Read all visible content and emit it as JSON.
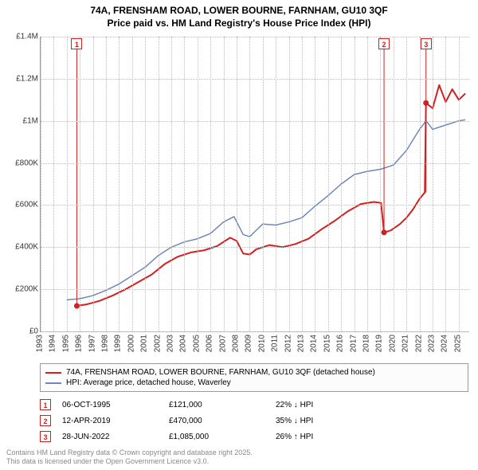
{
  "title_line1": "74A, FRENSHAM ROAD, LOWER BOURNE, FARNHAM, GU10 3QF",
  "title_line2": "Price paid vs. HM Land Registry's House Price Index (HPI)",
  "chart": {
    "type": "line",
    "background_color": "#fdfdfe",
    "grid_color": "#bbbbbb",
    "axis_color": "#999999",
    "xlim": [
      1993,
      2025.8
    ],
    "ylim": [
      0,
      1400000
    ],
    "ytick_step": 200000,
    "yticks": [
      {
        "v": 0,
        "label": "£0"
      },
      {
        "v": 200000,
        "label": "£200K"
      },
      {
        "v": 400000,
        "label": "£400K"
      },
      {
        "v": 600000,
        "label": "£600K"
      },
      {
        "v": 800000,
        "label": "£800K"
      },
      {
        "v": 1000000,
        "label": "£1M"
      },
      {
        "v": 1200000,
        "label": "£1.2M"
      },
      {
        "v": 1400000,
        "label": "£1.4M"
      }
    ],
    "xticks": [
      1993,
      1994,
      1995,
      1996,
      1997,
      1998,
      1999,
      2000,
      2001,
      2002,
      2003,
      2004,
      2005,
      2006,
      2007,
      2008,
      2009,
      2010,
      2011,
      2012,
      2013,
      2014,
      2015,
      2016,
      2017,
      2018,
      2019,
      2020,
      2021,
      2022,
      2023,
      2024,
      2025
    ],
    "series": [
      {
        "name": "hpi",
        "color": "#6f87b8",
        "width": 1.5,
        "points": [
          [
            1995.0,
            150000
          ],
          [
            1996.0,
            155000
          ],
          [
            1997.0,
            170000
          ],
          [
            1998.0,
            195000
          ],
          [
            1999.0,
            225000
          ],
          [
            2000.0,
            265000
          ],
          [
            2001.0,
            305000
          ],
          [
            2002.0,
            360000
          ],
          [
            2003.0,
            400000
          ],
          [
            2004.0,
            425000
          ],
          [
            2005.0,
            440000
          ],
          [
            2006.0,
            465000
          ],
          [
            2007.0,
            520000
          ],
          [
            2007.8,
            545000
          ],
          [
            2008.5,
            460000
          ],
          [
            2009.0,
            450000
          ],
          [
            2009.5,
            480000
          ],
          [
            2010.0,
            510000
          ],
          [
            2011.0,
            505000
          ],
          [
            2012.0,
            520000
          ],
          [
            2013.0,
            540000
          ],
          [
            2014.0,
            595000
          ],
          [
            2015.0,
            645000
          ],
          [
            2016.0,
            700000
          ],
          [
            2017.0,
            745000
          ],
          [
            2018.0,
            760000
          ],
          [
            2019.0,
            770000
          ],
          [
            2020.0,
            790000
          ],
          [
            2021.0,
            860000
          ],
          [
            2022.0,
            960000
          ],
          [
            2022.5,
            1000000
          ],
          [
            2023.0,
            960000
          ],
          [
            2024.0,
            980000
          ],
          [
            2025.0,
            1000000
          ],
          [
            2025.5,
            1005000
          ]
        ]
      },
      {
        "name": "property",
        "color": "#d02020",
        "width": 2,
        "points": [
          [
            1995.77,
            121000
          ],
          [
            1996.5,
            128000
          ],
          [
            1997.5,
            145000
          ],
          [
            1998.5,
            170000
          ],
          [
            1999.5,
            200000
          ],
          [
            2000.5,
            235000
          ],
          [
            2001.5,
            270000
          ],
          [
            2002.5,
            320000
          ],
          [
            2003.5,
            355000
          ],
          [
            2004.5,
            375000
          ],
          [
            2005.5,
            385000
          ],
          [
            2006.5,
            405000
          ],
          [
            2007.5,
            445000
          ],
          [
            2008.0,
            430000
          ],
          [
            2008.5,
            370000
          ],
          [
            2009.0,
            365000
          ],
          [
            2009.5,
            390000
          ],
          [
            2010.5,
            410000
          ],
          [
            2011.5,
            400000
          ],
          [
            2012.5,
            415000
          ],
          [
            2013.5,
            440000
          ],
          [
            2014.5,
            485000
          ],
          [
            2015.5,
            525000
          ],
          [
            2016.5,
            570000
          ],
          [
            2017.5,
            605000
          ],
          [
            2018.5,
            615000
          ],
          [
            2019.05,
            610000
          ],
          [
            2019.28,
            470000
          ],
          [
            2019.8,
            480000
          ],
          [
            2020.5,
            510000
          ],
          [
            2021.0,
            540000
          ],
          [
            2021.5,
            580000
          ],
          [
            2022.0,
            630000
          ],
          [
            2022.4,
            660000
          ],
          [
            2022.49,
            1085000
          ],
          [
            2023.0,
            1060000
          ],
          [
            2023.5,
            1170000
          ],
          [
            2024.0,
            1090000
          ],
          [
            2024.5,
            1150000
          ],
          [
            2025.0,
            1100000
          ],
          [
            2025.5,
            1130000
          ]
        ],
        "dot_points": [
          [
            1995.77,
            121000
          ],
          [
            2019.28,
            470000
          ],
          [
            2022.49,
            1085000
          ]
        ],
        "dot_radius": 3.5
      }
    ],
    "markers": [
      {
        "n": "1",
        "x": 1995.77,
        "y_top": true,
        "color": "#d02020"
      },
      {
        "n": "2",
        "x": 2019.28,
        "y_top": true,
        "color": "#d02020"
      },
      {
        "n": "3",
        "x": 2022.49,
        "y_top": true,
        "color": "#d02020"
      }
    ]
  },
  "legend": [
    {
      "color": "#d02020",
      "label": "74A, FRENSHAM ROAD, LOWER BOURNE, FARNHAM, GU10 3QF (detached house)"
    },
    {
      "color": "#6f87b8",
      "label": "HPI: Average price, detached house, Waverley"
    }
  ],
  "events": [
    {
      "n": "1",
      "color": "#d02020",
      "date": "06-OCT-1995",
      "price": "£121,000",
      "pct": "22% ↓ HPI"
    },
    {
      "n": "2",
      "color": "#d02020",
      "date": "12-APR-2019",
      "price": "£470,000",
      "pct": "35% ↓ HPI"
    },
    {
      "n": "3",
      "color": "#d02020",
      "date": "28-JUN-2022",
      "price": "£1,085,000",
      "pct": "26% ↑ HPI"
    }
  ],
  "attribution_line1": "Contains HM Land Registry data © Crown copyright and database right 2025.",
  "attribution_line2": "This data is licensed under the Open Government Licence v3.0."
}
